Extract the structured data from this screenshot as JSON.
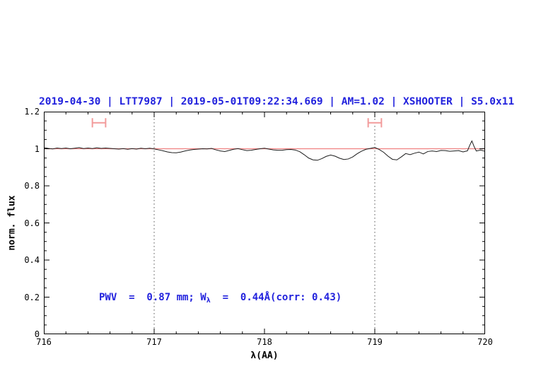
{
  "title": {
    "text": "2019-04-30 | LTT7987 | 2019-05-01T09:22:34.669 | AM=1.02 | XSHOOTER | S5.0x11",
    "color": "#2222dd"
  },
  "annotation": {
    "pre": "PWV  =  0.87 mm; W",
    "sub": "λ",
    "post": "  =  0.44Å(corr: 0.43)",
    "color": "#2222dd"
  },
  "chart_data": {
    "type": "line",
    "title": "2019-04-30 | LTT7987 | 2019-05-01T09:22:34.669 | AM=1.02 | XSHOOTER | S5.0x11",
    "xlabel": "λ(AA)",
    "ylabel": "norm. flux",
    "xlim": [
      716,
      720
    ],
    "ylim": [
      0,
      1.2
    ],
    "grid": false,
    "x_major_ticks": [
      716,
      717,
      718,
      719,
      720
    ],
    "x_tick_labels": [
      "716",
      "717",
      "718",
      "719",
      "720"
    ],
    "x_minor_step": 0.2,
    "y_major_ticks": [
      0,
      0.2,
      0.4,
      0.6,
      0.8,
      1,
      1.2
    ],
    "y_tick_labels": [
      "0",
      "0.2",
      "0.4",
      "0.6",
      "0.8",
      "1",
      "1.2"
    ],
    "y_minor_step": 0.05,
    "reference_line": {
      "y": 1.0,
      "color": "#f08080"
    },
    "vlines": {
      "x": [
        717,
        719
      ],
      "color": "#555555",
      "style": "dotted"
    },
    "measurement_windows": [
      {
        "x1": 716.44,
        "x2": 716.56,
        "y": 1.14,
        "cap": 0.025,
        "color": "#f29b9b"
      },
      {
        "x1": 718.94,
        "x2": 719.06,
        "y": 1.14,
        "cap": 0.025,
        "color": "#f29b9b"
      }
    ],
    "series": [
      {
        "name": "normalized-spectrum",
        "color": "#1c1c1c",
        "points": [
          [
            716.0,
            1.006
          ],
          [
            716.04,
            1.002
          ],
          [
            716.08,
            0.999
          ],
          [
            716.12,
            1.004
          ],
          [
            716.16,
            1.001
          ],
          [
            716.2,
            1.004
          ],
          [
            716.24,
            1.0
          ],
          [
            716.28,
            1.003
          ],
          [
            716.32,
            1.006
          ],
          [
            716.36,
            1.001
          ],
          [
            716.4,
            1.004
          ],
          [
            716.44,
            1.001
          ],
          [
            716.48,
            1.005
          ],
          [
            716.52,
            1.002
          ],
          [
            716.56,
            1.004
          ],
          [
            716.6,
            1.002
          ],
          [
            716.64,
            1.0
          ],
          [
            716.68,
            0.998
          ],
          [
            716.72,
            1.001
          ],
          [
            716.76,
            0.997
          ],
          [
            716.8,
            1.001
          ],
          [
            716.84,
            0.998
          ],
          [
            716.88,
            1.003
          ],
          [
            716.92,
            1.0
          ],
          [
            716.96,
            1.003
          ],
          [
            717.0,
            0.999
          ],
          [
            717.04,
            0.994
          ],
          [
            717.08,
            0.989
          ],
          [
            717.12,
            0.983
          ],
          [
            717.16,
            0.979
          ],
          [
            717.2,
            0.978
          ],
          [
            717.24,
            0.982
          ],
          [
            717.28,
            0.988
          ],
          [
            717.32,
            0.993
          ],
          [
            717.36,
            0.996
          ],
          [
            717.4,
            0.998
          ],
          [
            717.44,
            1.0
          ],
          [
            717.48,
            0.999
          ],
          [
            717.52,
            1.002
          ],
          [
            717.56,
            0.994
          ],
          [
            717.6,
            0.988
          ],
          [
            717.64,
            0.985
          ],
          [
            717.68,
            0.991
          ],
          [
            717.72,
            0.997
          ],
          [
            717.76,
            1.001
          ],
          [
            717.8,
            0.995
          ],
          [
            717.84,
            0.99
          ],
          [
            717.88,
            0.992
          ],
          [
            717.92,
            0.996
          ],
          [
            717.96,
            1.0
          ],
          [
            718.0,
            1.003
          ],
          [
            718.04,
            0.998
          ],
          [
            718.08,
            0.994
          ],
          [
            718.12,
            0.992
          ],
          [
            718.16,
            0.992
          ],
          [
            718.2,
            0.995
          ],
          [
            718.24,
            0.996
          ],
          [
            718.28,
            0.993
          ],
          [
            718.32,
            0.984
          ],
          [
            718.36,
            0.968
          ],
          [
            718.4,
            0.95
          ],
          [
            718.44,
            0.94
          ],
          [
            718.48,
            0.938
          ],
          [
            718.52,
            0.947
          ],
          [
            718.56,
            0.959
          ],
          [
            718.6,
            0.966
          ],
          [
            718.64,
            0.96
          ],
          [
            718.68,
            0.949
          ],
          [
            718.72,
            0.942
          ],
          [
            718.76,
            0.945
          ],
          [
            718.8,
            0.956
          ],
          [
            718.84,
            0.973
          ],
          [
            718.88,
            0.987
          ],
          [
            718.92,
            0.997
          ],
          [
            718.96,
            1.002
          ],
          [
            719.0,
            1.007
          ],
          [
            719.04,
            0.996
          ],
          [
            719.08,
            0.981
          ],
          [
            719.12,
            0.96
          ],
          [
            719.16,
            0.943
          ],
          [
            719.2,
            0.94
          ],
          [
            719.24,
            0.956
          ],
          [
            719.28,
            0.974
          ],
          [
            719.32,
            0.968
          ],
          [
            719.36,
            0.976
          ],
          [
            719.4,
            0.982
          ],
          [
            719.44,
            0.972
          ],
          [
            719.48,
            0.985
          ],
          [
            719.52,
            0.988
          ],
          [
            719.56,
            0.985
          ],
          [
            719.6,
            0.991
          ],
          [
            719.64,
            0.99
          ],
          [
            719.68,
            0.986
          ],
          [
            719.72,
            0.988
          ],
          [
            719.76,
            0.99
          ],
          [
            719.8,
            0.983
          ],
          [
            719.84,
            0.989
          ],
          [
            719.86,
            1.018
          ],
          [
            719.88,
            1.042
          ],
          [
            719.9,
            1.012
          ],
          [
            719.92,
            0.988
          ],
          [
            719.96,
            0.993
          ],
          [
            720.0,
            0.986
          ]
        ]
      }
    ]
  }
}
